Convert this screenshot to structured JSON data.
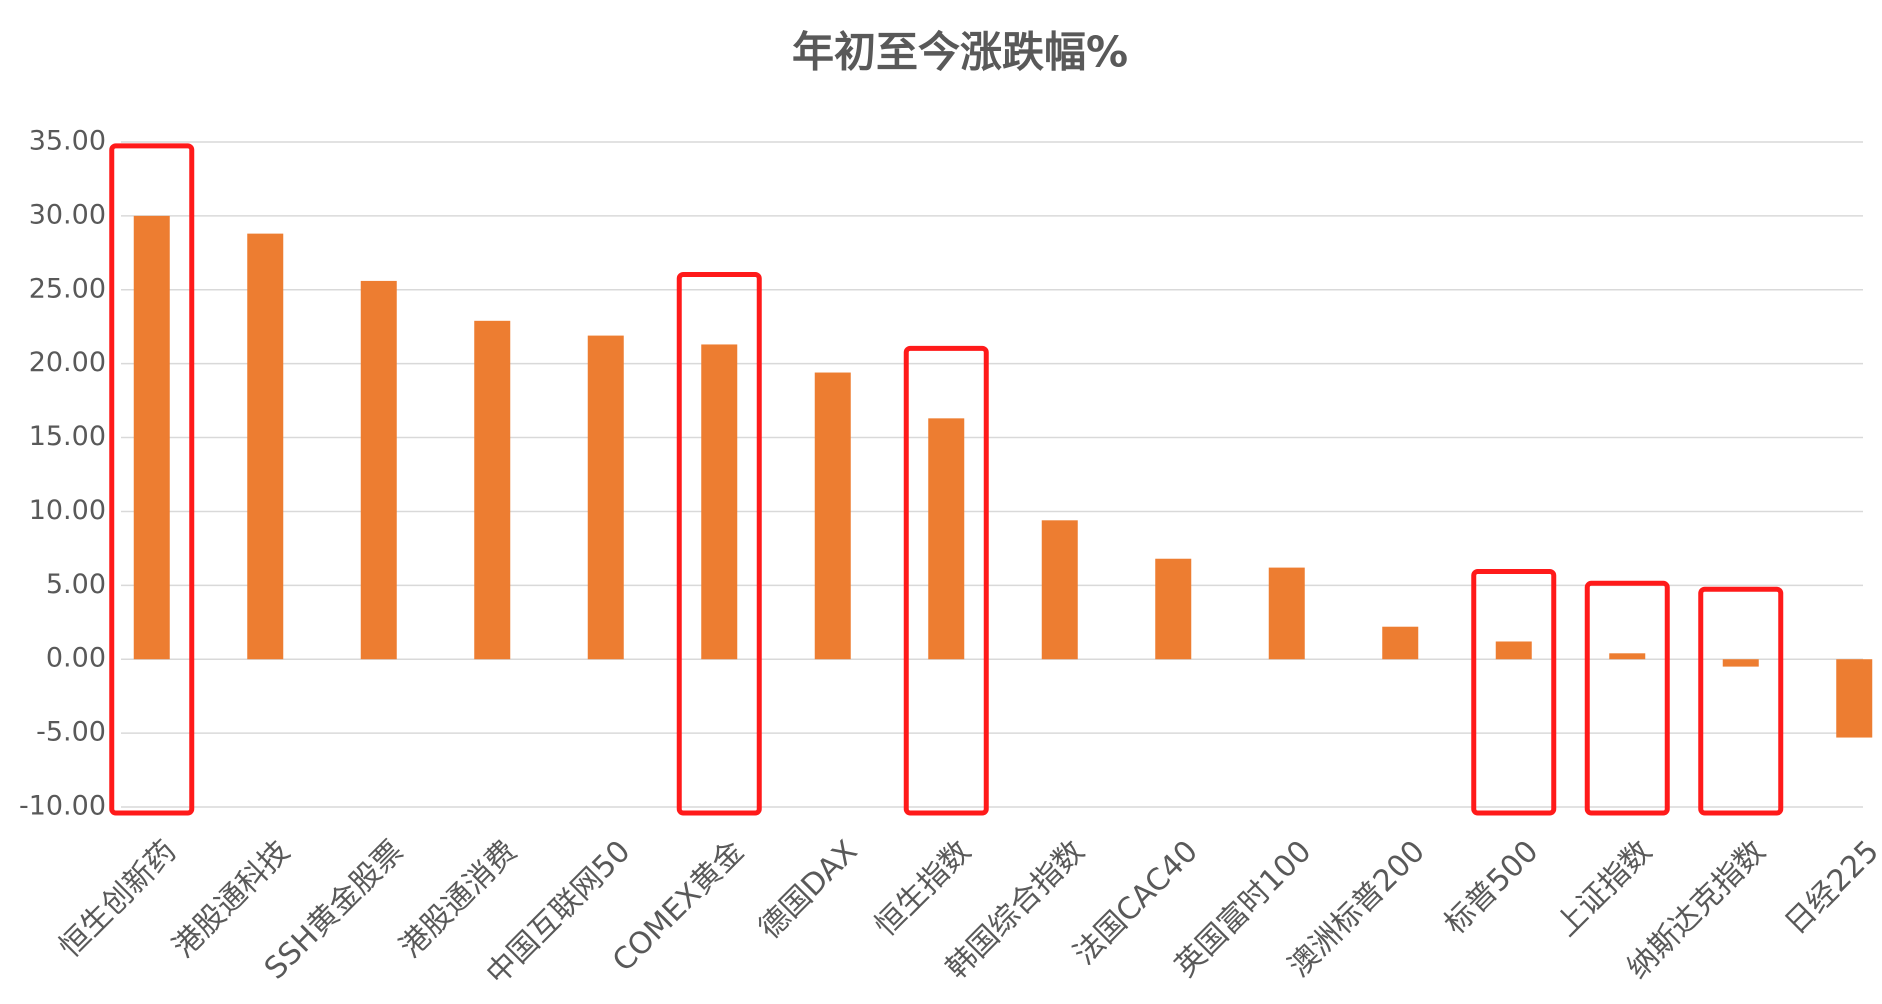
{
  "chart_data": {
    "type": "bar",
    "title": "年初至今涨跌幅%",
    "categories": [
      "恒生创新药",
      "港股通科技",
      "SSH黄金股票",
      "港股通消费",
      "中国互联网50",
      "COMEX黄金",
      "德国DAX",
      "恒生指数",
      "韩国综合指数",
      "法国CAC40",
      "英国富时100",
      "澳洲标普200",
      "标普500",
      "上证指数",
      "纳斯达克指数",
      "日经225"
    ],
    "values": [
      30.0,
      28.8,
      25.6,
      22.9,
      21.9,
      21.3,
      19.4,
      16.3,
      9.4,
      6.8,
      6.2,
      2.2,
      1.2,
      0.4,
      -0.5,
      -5.3
    ],
    "color": "#ed7d31",
    "ylim": [
      -10,
      35
    ],
    "yticks": [
      {
        "value": -10,
        "label": "-10.00"
      },
      {
        "value": -5,
        "label": "-5.00"
      },
      {
        "value": 0,
        "label": "0.00"
      },
      {
        "value": 5,
        "label": "5.00"
      },
      {
        "value": 10,
        "label": "10.00"
      },
      {
        "value": 15,
        "label": "15.00"
      },
      {
        "value": 20,
        "label": "20.00"
      },
      {
        "value": 25,
        "label": "25.00"
      },
      {
        "value": 30,
        "label": "30.00"
      },
      {
        "value": 35,
        "label": "35.00"
      }
    ],
    "grid": true
  }
}
